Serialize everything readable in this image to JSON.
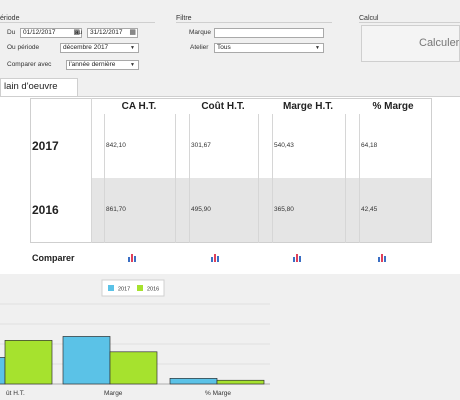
{
  "filters": {
    "periode_title": "ériode",
    "du_label": "Du",
    "du_value": "01/12/2017",
    "au_label": "au",
    "au_value": "31/12/2017",
    "ou_periode_label": "Ou période",
    "ou_periode_value": "décembre 2017",
    "comparer_label": "Comparer avec",
    "comparer_value": "l'année dernière",
    "filtre_title": "Filtre",
    "marque_label": "Marque",
    "marque_value": "",
    "atelier_label": "Atelier",
    "atelier_value": "Tous",
    "calcul_title": "Calcul",
    "calculer_label": "Calculer"
  },
  "tab": {
    "label": "lain d'oeuvre"
  },
  "table": {
    "headers": [
      "CA H.T.",
      "Coût H.T.",
      "Marge H.T.",
      "% Marge"
    ],
    "rows": [
      {
        "year": "2017",
        "values": [
          "842,10",
          "301,67",
          "540,43",
          "64,18"
        ]
      },
      {
        "year": "2016",
        "values": [
          "861,70",
          "495,90",
          "365,80",
          "42,45"
        ]
      }
    ],
    "compare_label": "Comparer",
    "compare_icon": "bar-chart-icon"
  },
  "colors": {
    "series_2017": "#5bc2e7",
    "series_2016": "#a6e22e",
    "bar_border": "#333333"
  },
  "chart_data": {
    "type": "bar",
    "categories": [
      "Coût H.T.",
      "Marge",
      "% Marge"
    ],
    "category_labels_visible": [
      "ût H.T.",
      "Marge",
      "% Marge"
    ],
    "series": [
      {
        "name": "2017",
        "values": [
          301.67,
          540.43,
          64.18
        ]
      },
      {
        "name": "2016",
        "values": [
          495.9,
          365.8,
          42.45
        ]
      }
    ],
    "ylim": [
      0,
      1000
    ],
    "grid": true,
    "legend": "top-center"
  }
}
